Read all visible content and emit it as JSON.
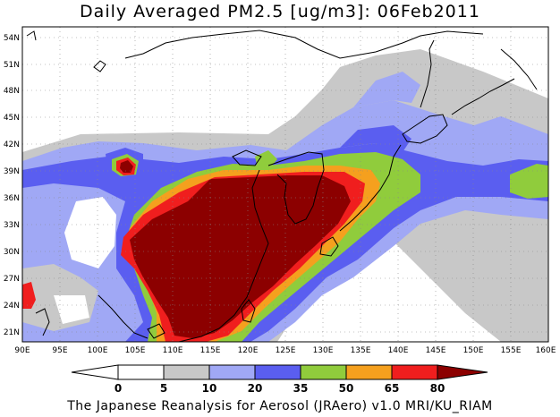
{
  "title": "Daily Averaged PM2.5 [ug/m3]: 06Feb2011",
  "credit": "The Japanese Reanalysis for Aerosol (JRAero) v1.0 MRI/KU_RIAM",
  "longitude_labels": [
    "90E",
    "95E",
    "100E",
    "105E",
    "110E",
    "115E",
    "120E",
    "125E",
    "130E",
    "135E",
    "140E",
    "145E",
    "150E",
    "155E",
    "160E"
  ],
  "latitude_labels": [
    "54N",
    "51N",
    "48N",
    "45N",
    "42N",
    "39N",
    "36N",
    "33N",
    "30N",
    "27N",
    "24N",
    "21N"
  ],
  "colorbar": {
    "labels": [
      "0",
      "5",
      "10",
      "20",
      "35",
      "50",
      "65",
      "80"
    ],
    "colors": [
      "#ffffff",
      "#c8c8c8",
      "#a0a8f5",
      "#5a5ef0",
      "#90cc3c",
      "#f5a01e",
      "#f01e1e",
      "#8c0000"
    ]
  },
  "chart_data": {
    "type": "heatmap",
    "title": "Daily Averaged PM2.5 [ug/m3]: 06Feb2011",
    "xlim": [
      90,
      160
    ],
    "ylim": [
      20,
      55
    ],
    "levels": [
      0,
      5,
      10,
      20,
      35,
      50,
      65,
      80
    ],
    "units": "ug/m3"
  }
}
